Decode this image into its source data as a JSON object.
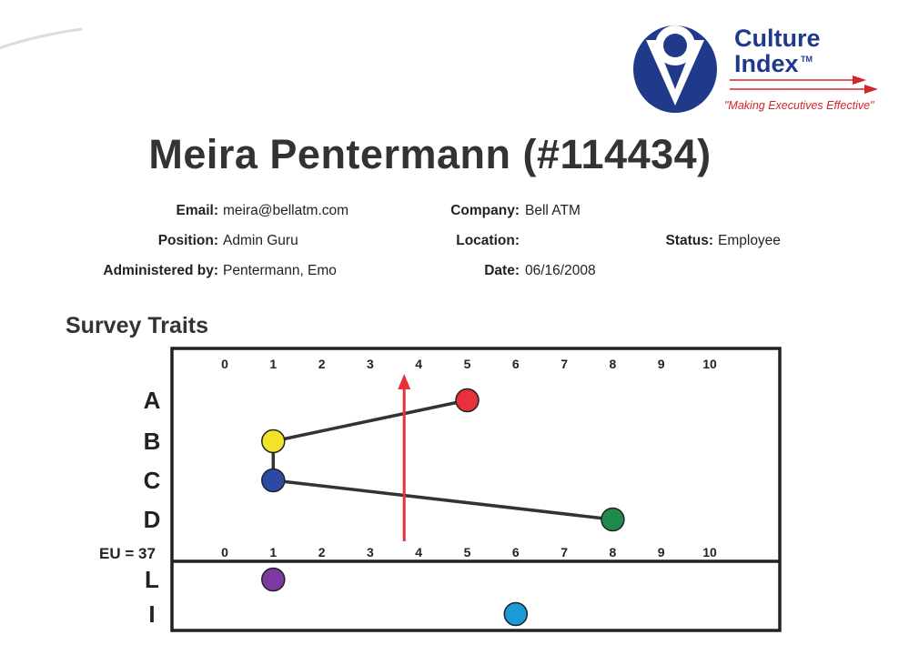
{
  "logo": {
    "line1": "Culture",
    "line2": "Index",
    "tm": "TM",
    "tagline": "\"Making Executives Effective\"",
    "colors": {
      "blue": "#1f3a8a",
      "red": "#d3252c"
    }
  },
  "title": "Meira Pentermann (#114434)",
  "fields": {
    "email_label": "Email:",
    "email": "meira@bellatm.com",
    "position_label": "Position:",
    "position": "Admin Guru",
    "administered_label": "Administered by:",
    "administered": "Pentermann, Emo",
    "company_label": "Company:",
    "company": "Bell ATM",
    "location_label": "Location:",
    "location": "",
    "date_label": "Date:",
    "date": "06/16/2008",
    "status_label": "Status:",
    "status": "Employee"
  },
  "section_title": "Survey Traits",
  "eu_label": "EU = 37",
  "chart_data": {
    "type": "scatter",
    "x_ticks": [
      "0",
      "1",
      "2",
      "3",
      "4",
      "5",
      "6",
      "7",
      "8",
      "9",
      "10"
    ],
    "xlim": [
      0,
      10
    ],
    "traits": [
      {
        "name": "A",
        "value": 5,
        "color": "#e8313a"
      },
      {
        "name": "B",
        "value": 1,
        "color": "#f2e22a"
      },
      {
        "name": "C",
        "value": 1,
        "color": "#2b4aa6"
      },
      {
        "name": "D",
        "value": 8,
        "color": "#1f8a4c"
      }
    ],
    "connections": [
      [
        "A",
        "B"
      ],
      [
        "B",
        "C"
      ],
      [
        "C",
        "D"
      ]
    ],
    "norm_arrow": {
      "value": 3.7,
      "color": "#e8313a"
    },
    "lower_traits": [
      {
        "name": "L",
        "value": 1,
        "color": "#7a3aa0"
      },
      {
        "name": "I",
        "value": 6,
        "color": "#1a9ad6"
      }
    ]
  }
}
